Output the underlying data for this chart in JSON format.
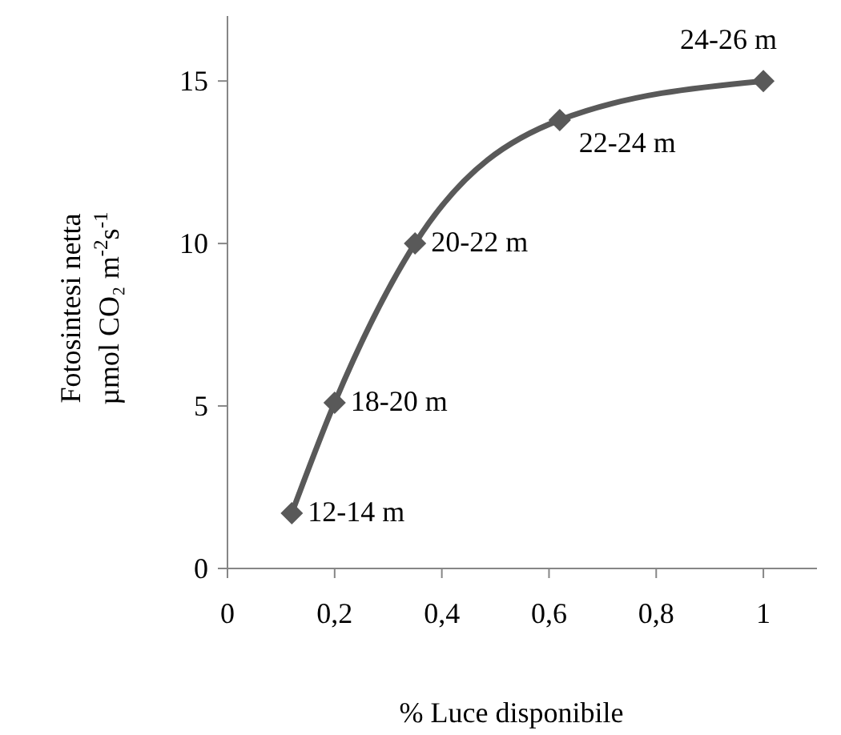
{
  "chart_data": {
    "type": "line",
    "xlabel": "% Luce disponibile",
    "ylabel": "Fotosintesi netta\nµmol CO₂ m$^{-2}$s$^{-1}$",
    "x": [
      0.12,
      0.2,
      0.35,
      0.62,
      1
    ],
    "series": [
      {
        "color": "#595959",
        "values": [
          1.7,
          5.1,
          10,
          13.8,
          15
        ]
      }
    ],
    "xlim": [
      0,
      1.1
    ],
    "xticks": [
      0,
      {
        "value": 0.2,
        "label": "0,2"
      },
      {
        "value": 0.4,
        "label": "0,4"
      },
      {
        "value": 0.6,
        "label": "0,6"
      },
      {
        "value": 0.8,
        "label": "0,8"
      },
      1
    ],
    "ylim": [
      0,
      17
    ],
    "yticks": [
      0,
      5,
      10,
      15
    ],
    "marker": "diamond",
    "line_style": "solid",
    "annotations": [
      {
        "text": "12-14 m",
        "x": 0.12,
        "y": 1.7
      },
      {
        "text": "18-20 m",
        "x": 0.2,
        "y": 5.1
      },
      {
        "text": "20-22 m",
        "x": 0.35,
        "y": 10
      },
      {
        "text": "22-24 m",
        "x": 0.62,
        "y": 13.8
      },
      {
        "text": "24-26 m",
        "x": 1,
        "y": 15
      }
    ]
  }
}
